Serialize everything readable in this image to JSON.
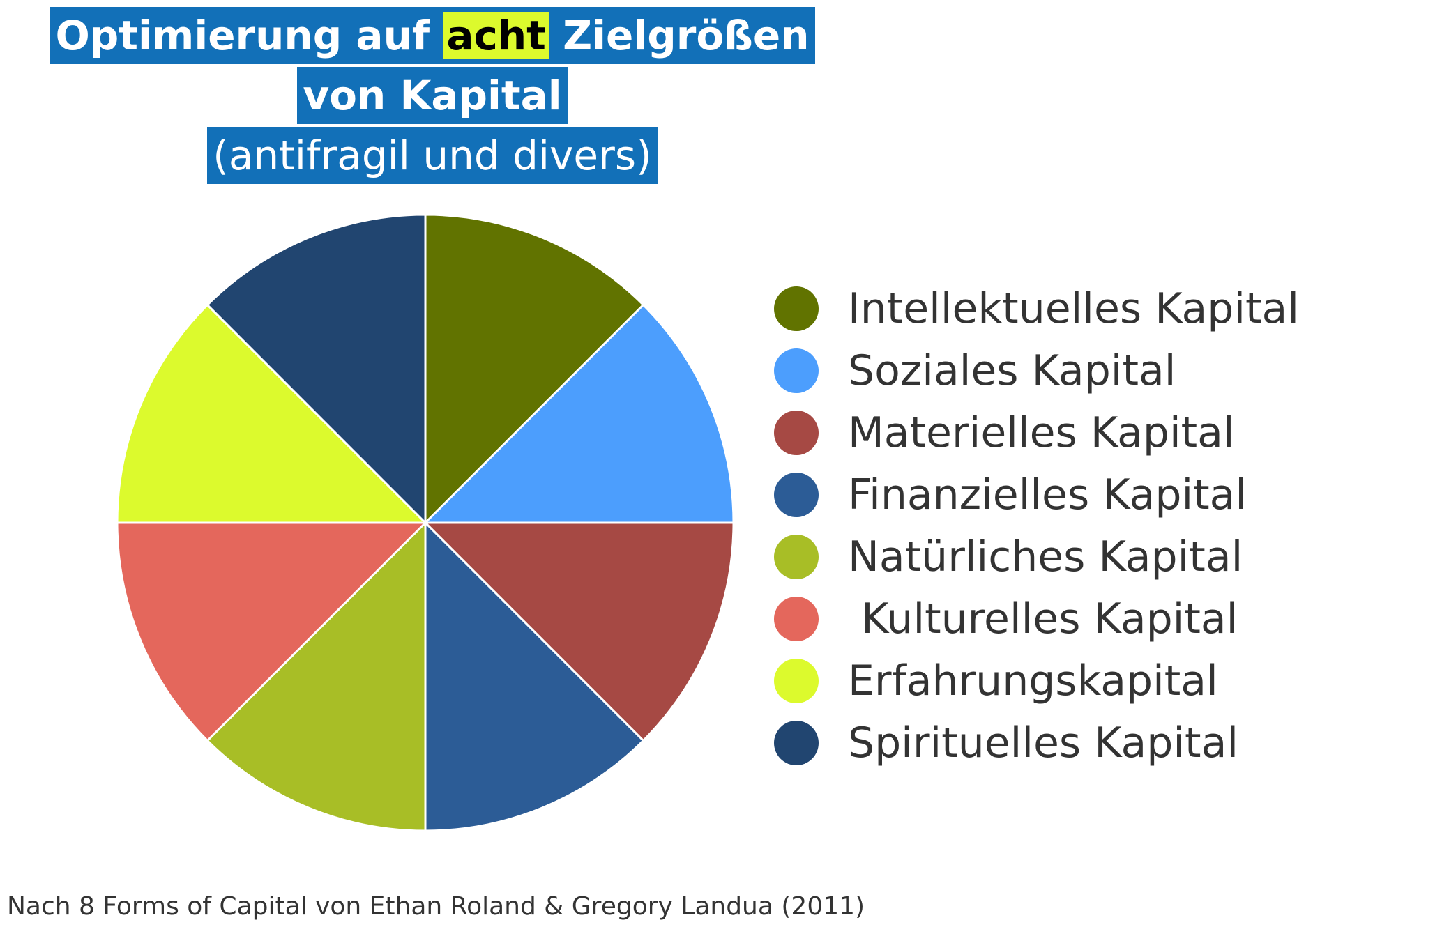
{
  "title": {
    "line1_before": "Optimierung auf",
    "line1_highlight": "acht",
    "line1_after": "Zielgrößen",
    "line2": "von Kapital",
    "line3": "(antifragil und divers)",
    "colors": {
      "background": "#1270b8",
      "text": "#ffffff",
      "highlight": "#dcfa2d",
      "highlight_text": "#000000"
    }
  },
  "chart_data": {
    "type": "pie",
    "legend_position": "right",
    "start_angle_deg": 0,
    "direction": "clockwise",
    "slices": [
      {
        "label": "Intellektuelles Kapital",
        "value": 12.5,
        "color": "#617300"
      },
      {
        "label": "Soziales Kapital",
        "value": 12.5,
        "color": "#4c9efd"
      },
      {
        "label": "Materielles Kapital",
        "value": 12.5,
        "color": "#a64944"
      },
      {
        "label": "Finanzielles Kapital",
        "value": 12.5,
        "color": "#2c5c96"
      },
      {
        "label": "Natürliches Kapital",
        "value": 12.5,
        "color": "#a8be26"
      },
      {
        "label": " Kulturelles Kapital",
        "value": 12.5,
        "color": "#e4675c"
      },
      {
        "label": "Erfahrungskapital",
        "value": 12.5,
        "color": "#dcfa2d"
      },
      {
        "label": "Spirituelles Kapital",
        "value": 12.5,
        "color": "#214570"
      }
    ]
  },
  "source": "Nach 8 Forms of Capital von Ethan Roland & Gregory Landua (2011)"
}
